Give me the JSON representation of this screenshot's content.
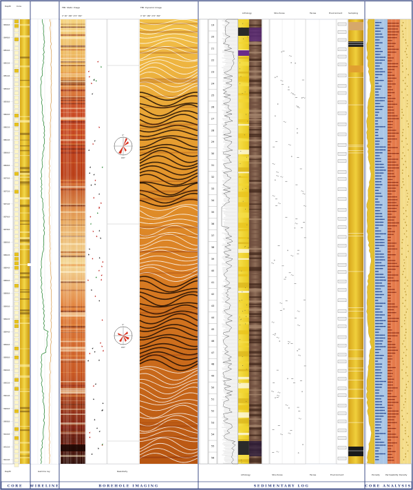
{
  "sections": {
    "core": "CORE",
    "wireline": "WIRELINE",
    "borehole": "BOREHOLE IMAGING",
    "sedlog": "SEDIMENTARY LOG",
    "coreanalysis": "CORE ANALYSIS"
  },
  "depth_labels": [
    "3846.8",
    "3848.8",
    "3850.8",
    "3852.8",
    "3854.8",
    "3856.8",
    "3858.8",
    "3860.8",
    "3862.8",
    "3864.8",
    "3866.8",
    "3868.8",
    "3870.8",
    "3872.8",
    "3874.8",
    "3876.8",
    "3878.8",
    "3880.8",
    "3882.8",
    "3884.8",
    "3886.8",
    "3888.8",
    "3890.8",
    "3892.8",
    "3894.8",
    "3896.8",
    "3898.8",
    "3900.8",
    "3902.8",
    "3904.8",
    "3906.8",
    "3908.8",
    "3910.8",
    "3912.8",
    "3914.8"
  ],
  "core_numbers": [
    "19",
    "20",
    "21",
    "22",
    "23",
    "24",
    "25",
    "26",
    "27",
    "28",
    "29",
    "30",
    "31",
    "32",
    "33",
    "34",
    "35",
    "36",
    "37",
    "38",
    "39",
    "40",
    "41",
    "42",
    "43",
    "44",
    "45",
    "46",
    "47",
    "48",
    "49",
    "50",
    "51",
    "52",
    "53",
    "54",
    "55",
    "56"
  ],
  "top_headers": {
    "col1": "Depth",
    "col2": "Core",
    "img_static": "FMI: Static Image",
    "img_dynamic": "FMI: Dynamic Image",
    "img_scale": "0°    90°   180°  270°  360°",
    "rose_n": "0°",
    "rose_s": "180°",
    "sed_litho": "Lithology",
    "sed_struct": "Structures",
    "sed_facies": "Facies",
    "sed_env": "Environment",
    "sed_sample": "Sampling"
  },
  "bottom_headers": {
    "col1": "Depth",
    "wl": "Gamma ray",
    "resist": "Resistivity",
    "sed_a": "Lithology",
    "sed_b": "Structures",
    "sed_c": "Facies",
    "sed_d": "Environment",
    "ca_a": "Porosity",
    "ca_b": "Permeability",
    "ca_c": "Density"
  },
  "colors": {
    "frame": "#2a3a7a",
    "sand": "#f2d632",
    "core_yellow": "#e8c21a",
    "orange": "#e2703a",
    "blue": "#8fb6dc",
    "dark_red": "#8a1f10",
    "green_curve": "#2e8b3a",
    "purple": "#6a2c8a"
  }
}
